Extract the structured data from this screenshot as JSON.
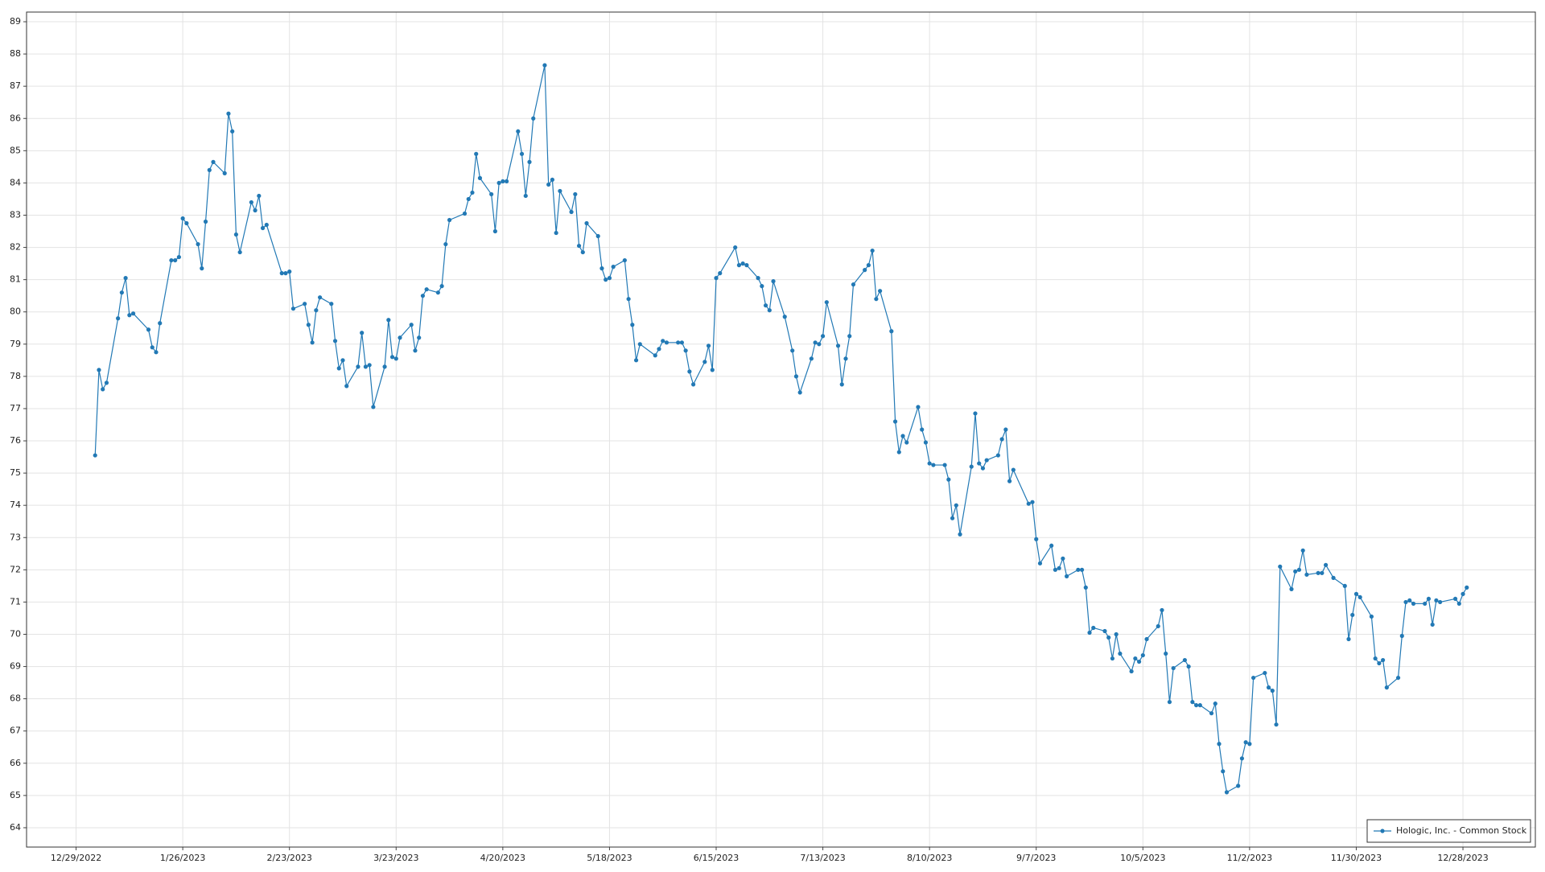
{
  "chart_data": {
    "type": "line",
    "x": [
      "1/3/2023",
      "1/4/2023",
      "1/5/2023",
      "1/6/2023",
      "1/9/2023",
      "1/10/2023",
      "1/11/2023",
      "1/12/2023",
      "1/13/2023",
      "1/17/2023",
      "1/18/2023",
      "1/19/2023",
      "1/20/2023",
      "1/23/2023",
      "1/24/2023",
      "1/25/2023",
      "1/26/2023",
      "1/27/2023",
      "1/30/2023",
      "1/31/2023",
      "2/1/2023",
      "2/2/2023",
      "2/3/2023",
      "2/6/2023",
      "2/7/2023",
      "2/8/2023",
      "2/9/2023",
      "2/10/2023",
      "2/13/2023",
      "2/14/2023",
      "2/15/2023",
      "2/16/2023",
      "2/17/2023",
      "2/21/2023",
      "2/22/2023",
      "2/23/2023",
      "2/24/2023",
      "2/27/2023",
      "2/28/2023",
      "3/1/2023",
      "3/2/2023",
      "3/3/2023",
      "3/6/2023",
      "3/7/2023",
      "3/8/2023",
      "3/9/2023",
      "3/10/2023",
      "3/13/2023",
      "3/14/2023",
      "3/15/2023",
      "3/16/2023",
      "3/17/2023",
      "3/20/2023",
      "3/21/2023",
      "3/22/2023",
      "3/23/2023",
      "3/24/2023",
      "3/27/2023",
      "3/28/2023",
      "3/29/2023",
      "3/30/2023",
      "3/31/2023",
      "4/3/2023",
      "4/4/2023",
      "4/5/2023",
      "4/6/2023",
      "4/10/2023",
      "4/11/2023",
      "4/12/2023",
      "4/13/2023",
      "4/14/2023",
      "4/17/2023",
      "4/18/2023",
      "4/19/2023",
      "4/20/2023",
      "4/21/2023",
      "4/24/2023",
      "4/25/2023",
      "4/26/2023",
      "4/27/2023",
      "4/28/2023",
      "5/1/2023",
      "5/2/2023",
      "5/3/2023",
      "5/4/2023",
      "5/5/2023",
      "5/8/2023",
      "5/9/2023",
      "5/10/2023",
      "5/11/2023",
      "5/12/2023",
      "5/15/2023",
      "5/16/2023",
      "5/17/2023",
      "5/18/2023",
      "5/19/2023",
      "5/22/2023",
      "5/23/2023",
      "5/24/2023",
      "5/25/2023",
      "5/26/2023",
      "5/30/2023",
      "5/31/2023",
      "6/1/2023",
      "6/2/2023",
      "6/5/2023",
      "6/6/2023",
      "6/7/2023",
      "6/8/2023",
      "6/9/2023",
      "6/12/2023",
      "6/13/2023",
      "6/14/2023",
      "6/15/2023",
      "6/16/2023",
      "6/20/2023",
      "6/21/2023",
      "6/22/2023",
      "6/23/2023",
      "6/26/2023",
      "6/27/2023",
      "6/28/2023",
      "6/29/2023",
      "6/30/2023",
      "7/3/2023",
      "7/5/2023",
      "7/6/2023",
      "7/7/2023",
      "7/10/2023",
      "7/11/2023",
      "7/12/2023",
      "7/13/2023",
      "7/14/2023",
      "7/17/2023",
      "7/18/2023",
      "7/19/2023",
      "7/20/2023",
      "7/21/2023",
      "7/24/2023",
      "7/25/2023",
      "7/26/2023",
      "7/27/2023",
      "7/28/2023",
      "7/31/2023",
      "8/1/2023",
      "8/2/2023",
      "8/3/2023",
      "8/4/2023",
      "8/7/2023",
      "8/8/2023",
      "8/9/2023",
      "8/10/2023",
      "8/11/2023",
      "8/14/2023",
      "8/15/2023",
      "8/16/2023",
      "8/17/2023",
      "8/18/2023",
      "8/21/2023",
      "8/22/2023",
      "8/23/2023",
      "8/24/2023",
      "8/25/2023",
      "8/28/2023",
      "8/29/2023",
      "8/30/2023",
      "8/31/2023",
      "9/1/2023",
      "9/5/2023",
      "9/6/2023",
      "9/7/2023",
      "9/8/2023",
      "9/11/2023",
      "9/12/2023",
      "9/13/2023",
      "9/14/2023",
      "9/15/2023",
      "9/18/2023",
      "9/19/2023",
      "9/20/2023",
      "9/21/2023",
      "9/22/2023",
      "9/25/2023",
      "9/26/2023",
      "9/27/2023",
      "9/28/2023",
      "9/29/2023",
      "10/2/2023",
      "10/3/2023",
      "10/4/2023",
      "10/5/2023",
      "10/6/2023",
      "10/9/2023",
      "10/10/2023",
      "10/11/2023",
      "10/12/2023",
      "10/13/2023",
      "10/16/2023",
      "10/17/2023",
      "10/18/2023",
      "10/19/2023",
      "10/20/2023",
      "10/23/2023",
      "10/24/2023",
      "10/25/2023",
      "10/26/2023",
      "10/27/2023",
      "10/30/2023",
      "10/31/2023",
      "11/1/2023",
      "11/2/2023",
      "11/3/2023",
      "11/6/2023",
      "11/7/2023",
      "11/8/2023",
      "11/9/2023",
      "11/10/2023",
      "11/13/2023",
      "11/14/2023",
      "11/15/2023",
      "11/16/2023",
      "11/17/2023",
      "11/20/2023",
      "11/21/2023",
      "11/22/2023",
      "11/24/2023",
      "11/27/2023",
      "11/28/2023",
      "11/29/2023",
      "11/30/2023",
      "12/1/2023",
      "12/4/2023",
      "12/5/2023",
      "12/6/2023",
      "12/7/2023",
      "12/8/2023",
      "12/11/2023",
      "12/12/2023",
      "12/13/2023",
      "12/14/2023",
      "12/15/2023",
      "12/18/2023",
      "12/19/2023",
      "12/20/2023",
      "12/21/2023",
      "12/22/2023",
      "12/26/2023",
      "12/27/2023",
      "12/28/2023",
      "12/29/2023"
    ],
    "series": [
      {
        "name": "Hologic, Inc. - Common Stock",
        "color": "#2279b5",
        "values": [
          75.55,
          78.2,
          77.6,
          77.8,
          79.8,
          80.6,
          81.05,
          79.9,
          79.95,
          79.45,
          78.9,
          78.75,
          79.65,
          81.6,
          81.6,
          81.7,
          82.9,
          82.75,
          82.1,
          81.35,
          82.8,
          84.4,
          84.65,
          84.3,
          86.15,
          85.6,
          82.4,
          81.85,
          83.4,
          83.15,
          83.6,
          82.6,
          82.7,
          81.2,
          81.2,
          81.25,
          80.1,
          80.25,
          79.6,
          79.05,
          80.05,
          80.45,
          80.25,
          79.1,
          78.25,
          78.5,
          77.7,
          78.3,
          79.35,
          78.3,
          78.35,
          77.05,
          78.3,
          79.75,
          78.6,
          78.55,
          79.2,
          79.6,
          78.8,
          79.2,
          80.5,
          80.7,
          80.6,
          80.8,
          82.1,
          82.85,
          83.05,
          83.5,
          83.7,
          84.9,
          84.15,
          83.65,
          82.5,
          84.0,
          84.05,
          84.05,
          85.6,
          84.9,
          83.6,
          84.65,
          86.0,
          87.65,
          83.95,
          84.1,
          82.45,
          83.75,
          83.1,
          83.65,
          82.05,
          81.85,
          82.75,
          82.35,
          81.35,
          81.0,
          81.05,
          81.4,
          81.6,
          80.4,
          79.6,
          78.5,
          79.0,
          78.65,
          78.85,
          79.1,
          79.05,
          79.05,
          79.05,
          78.8,
          78.15,
          77.75,
          78.45,
          78.95,
          78.2,
          81.05,
          81.2,
          82.0,
          81.45,
          81.5,
          81.45,
          81.05,
          80.8,
          80.2,
          80.05,
          80.95,
          79.85,
          78.8,
          78.0,
          77.5,
          78.55,
          79.05,
          79.0,
          79.25,
          80.3,
          78.95,
          77.75,
          78.55,
          79.25,
          80.85,
          81.3,
          81.45,
          81.9,
          80.4,
          80.65,
          79.4,
          76.6,
          75.65,
          76.15,
          75.95,
          77.05,
          76.35,
          75.95,
          75.3,
          75.25,
          75.25,
          74.8,
          73.6,
          74.0,
          73.1,
          75.2,
          76.85,
          75.3,
          75.15,
          75.4,
          75.55,
          76.05,
          76.35,
          74.75,
          75.1,
          74.05,
          74.1,
          72.95,
          72.2,
          72.75,
          72.0,
          72.05,
          72.35,
          71.8,
          72.0,
          72.0,
          71.45,
          70.05,
          70.2,
          70.1,
          69.9,
          69.25,
          70.0,
          69.4,
          68.85,
          69.25,
          69.15,
          69.35,
          69.85,
          70.25,
          70.75,
          69.4,
          67.9,
          68.95,
          69.2,
          69.0,
          67.9,
          67.8,
          67.8,
          67.55,
          67.85,
          66.6,
          65.75,
          65.1,
          65.3,
          66.15,
          66.65,
          66.6,
          68.65,
          68.8,
          68.35,
          68.25,
          67.2,
          72.1,
          71.4,
          71.95,
          72.0,
          72.6,
          71.85,
          71.9,
          71.9,
          72.15,
          71.75,
          71.5,
          69.85,
          70.6,
          71.25,
          71.15,
          70.55,
          69.25,
          69.1,
          69.2,
          68.35,
          68.65,
          69.95,
          71.0,
          71.05,
          70.95,
          70.95,
          71.1,
          70.3,
          71.05,
          71.0,
          71.1,
          70.95,
          71.25,
          71.45
        ]
      }
    ],
    "xlim": [
      "12/16/2022",
      "1/16/2024"
    ],
    "xticks": [
      "12/29/2022",
      "1/26/2023",
      "2/23/2023",
      "3/23/2023",
      "4/20/2023",
      "5/18/2023",
      "6/15/2023",
      "7/13/2023",
      "8/10/2023",
      "9/7/2023",
      "10/5/2023",
      "11/2/2023",
      "11/30/2023",
      "12/28/2023"
    ],
    "ylim": [
      63.4,
      89.3
    ],
    "yticks": [
      64,
      65,
      66,
      67,
      68,
      69,
      70,
      71,
      72,
      73,
      74,
      75,
      76,
      77,
      78,
      79,
      80,
      81,
      82,
      83,
      84,
      85,
      86,
      87,
      88,
      89
    ],
    "grid": true,
    "legend": "bottom-right"
  }
}
